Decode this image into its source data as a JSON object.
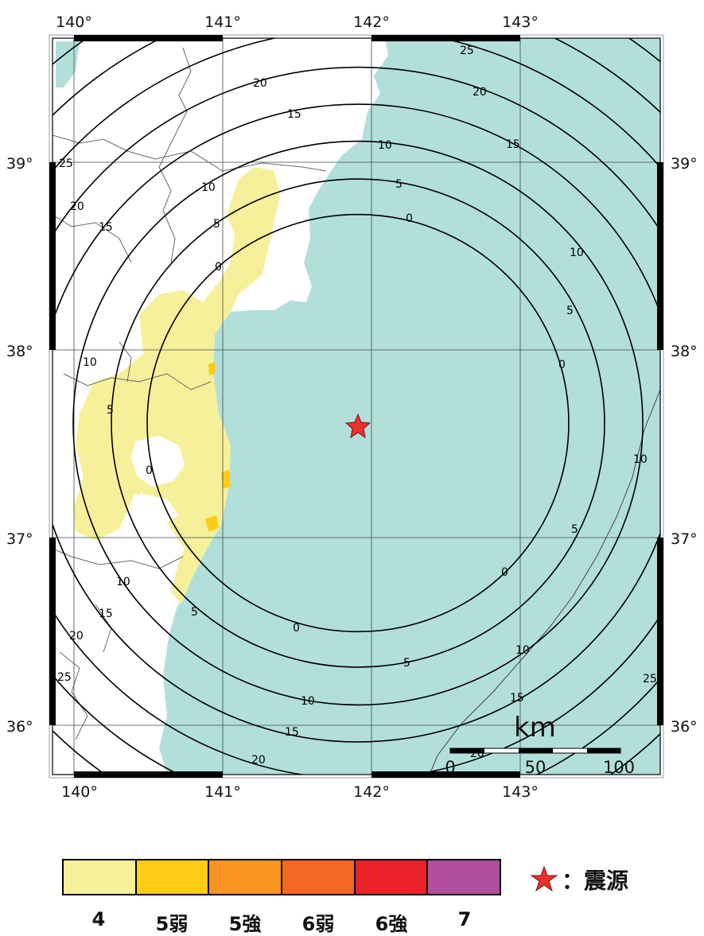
{
  "map": {
    "lon_labels_top": [
      "140°",
      "141°",
      "142°",
      "143°"
    ],
    "lon_labels_bottom": [
      "140°",
      "141°",
      "142°",
      "143°"
    ],
    "lat_labels_left": [
      "39°",
      "38°",
      "37°",
      "36°"
    ],
    "lat_labels_right": [
      "39°",
      "38°",
      "37°",
      "36°"
    ],
    "contour_values": [
      "0",
      "5",
      "10",
      "15",
      "20",
      "25"
    ],
    "epicenter": {
      "lon": 141.9,
      "lat": 37.6
    },
    "colors": {
      "sea": "#b3dfda",
      "land": "#ffffff",
      "intensity_4_area": "#f6f09a",
      "epicenter": "#e8322a",
      "contour": "#000000",
      "grid": "#3e4a48"
    }
  },
  "scale_bar": {
    "unit": "km",
    "ticks": [
      "0",
      "50",
      "100"
    ]
  },
  "legend": {
    "classes": [
      {
        "label": "4",
        "color": "#f6f09a"
      },
      {
        "label": "5弱",
        "color": "#ffcc15"
      },
      {
        "label": "5強",
        "color": "#f79520"
      },
      {
        "label": "6弱",
        "color": "#f26722"
      },
      {
        "label": "6強",
        "color": "#e8212a"
      },
      {
        "label": "7",
        "color": "#b04f9c"
      }
    ],
    "epicenter_key": "：震源",
    "epicenter_icon": "red-star-icon"
  }
}
